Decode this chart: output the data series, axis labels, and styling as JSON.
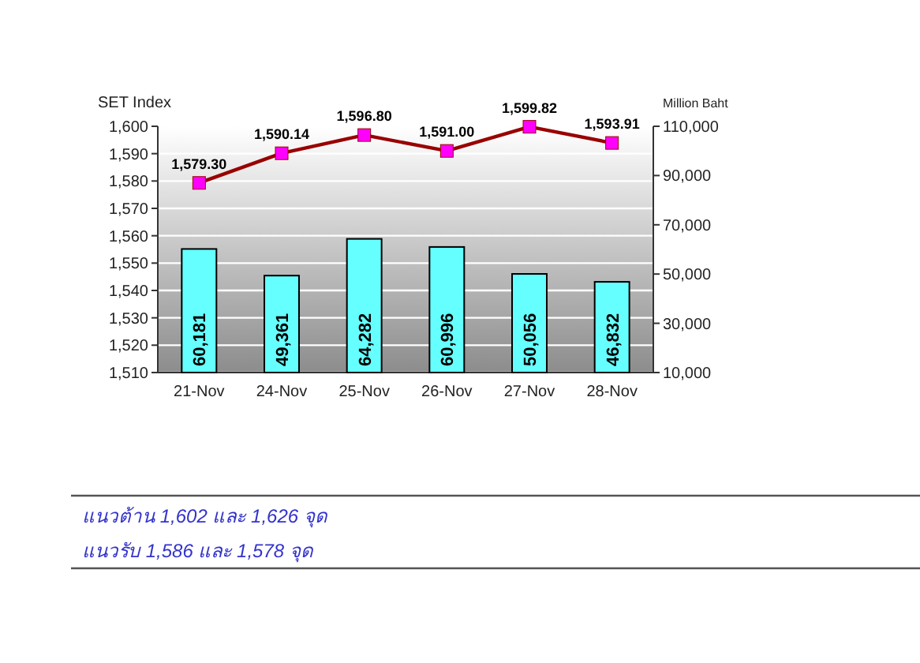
{
  "chart_data": {
    "type": "bar",
    "ylabel": "SET Index",
    "y2label": "Million Baht",
    "categories": [
      "21-Nov",
      "24-Nov",
      "25-Nov",
      "26-Nov",
      "27-Nov",
      "28-Nov"
    ],
    "series": [
      {
        "axis": "y2",
        "color": "#66ffff",
        "values": [
          60181,
          49361,
          64282,
          60996,
          50056,
          46832
        ],
        "value_labels": [
          "60,181",
          "49,361",
          "64,282",
          "60,996",
          "50,056",
          "46,832"
        ]
      },
      {
        "type": "line",
        "axis": "y",
        "color": "#990000",
        "marker": "square",
        "values": [
          1579.3,
          1590.14,
          1596.8,
          1591.0,
          1599.82,
          1593.91
        ],
        "value_labels": [
          "1,579.30",
          "1,590.14",
          "1,596.80",
          "1,591.00",
          "1,599.82",
          "1,593.91"
        ]
      }
    ],
    "ylim": [
      1510,
      1600
    ],
    "yticks": [
      {
        "value": 1510,
        "label": "1,510"
      },
      {
        "value": 1520,
        "label": "1,520"
      },
      {
        "value": 1530,
        "label": "1,530"
      },
      {
        "value": 1540,
        "label": "1,540"
      },
      {
        "value": 1550,
        "label": "1,550"
      },
      {
        "value": 1560,
        "label": "1,560"
      },
      {
        "value": 1570,
        "label": "1,570"
      },
      {
        "value": 1580,
        "label": "1,580"
      },
      {
        "value": 1590,
        "label": "1,590"
      },
      {
        "value": 1600,
        "label": "1,600"
      }
    ],
    "y2lim": [
      10000,
      110000
    ],
    "y2ticks": [
      {
        "value": 10000,
        "label": "10,000"
      },
      {
        "value": 30000,
        "label": "30,000"
      },
      {
        "value": 50000,
        "label": "50,000"
      },
      {
        "value": 70000,
        "label": "70,000"
      },
      {
        "value": 90000,
        "label": "90,000"
      },
      {
        "value": 110000,
        "label": "110,000"
      }
    ],
    "grid": "y",
    "annotations": [
      "แนวต้าน 1,602  และ 1,626 จุด",
      "แนวรับ 1,586 และ 1,578  จุด"
    ]
  }
}
